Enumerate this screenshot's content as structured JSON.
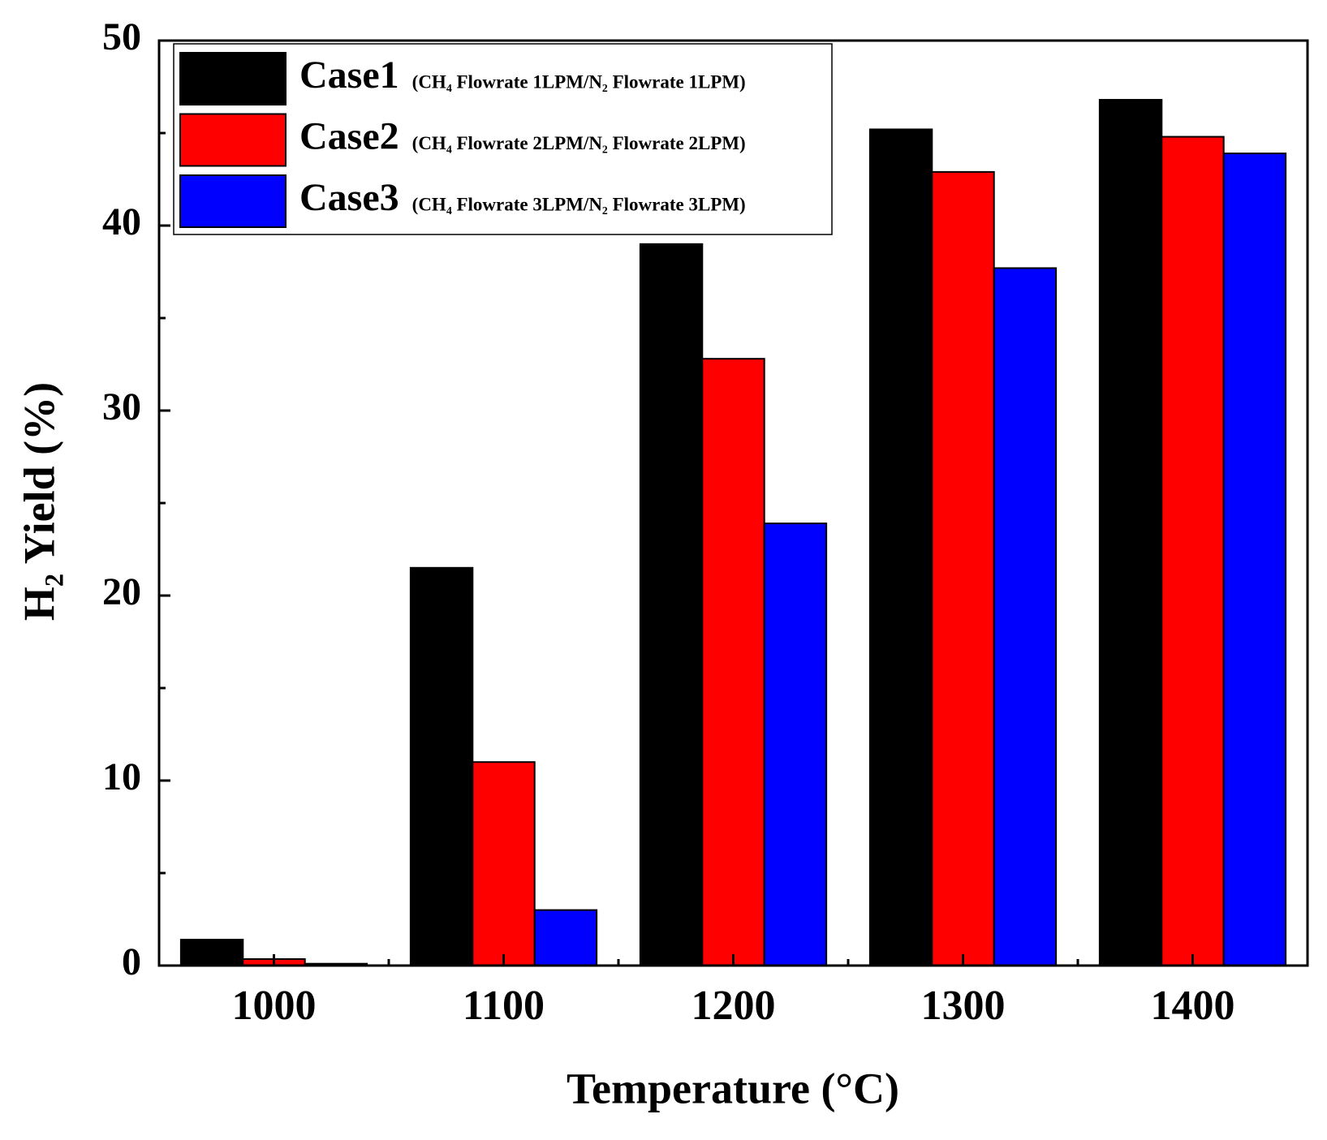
{
  "chart_data": {
    "type": "bar",
    "x_label": "Temperature (°C)",
    "y_label": "H₂ Yield (%)",
    "categories": [
      "1000",
      "1100",
      "1200",
      "1300",
      "1400"
    ],
    "series": [
      {
        "name": "Case1",
        "description": "(CH₄ Flowrate 1LPM/N₂ Flowrate 1LPM)",
        "color": "#000000",
        "values": [
          1.4,
          21.5,
          39.0,
          45.2,
          46.8
        ]
      },
      {
        "name": "Case2",
        "description": "(CH₄ Flowrate 2LPM/N₂ Flowrate 2LPM)",
        "color": "#ff0000",
        "values": [
          0.35,
          11.0,
          32.8,
          42.9,
          44.8
        ]
      },
      {
        "name": "Case3",
        "description": "(CH₄ Flowrate 3LPM/N₂ Flowrate 3LPM)",
        "color": "#0000ff",
        "values": [
          0.1,
          3.0,
          23.9,
          37.7,
          43.9
        ]
      }
    ],
    "ylim": [
      0,
      50
    ],
    "yticks": [
      0,
      10,
      20,
      30,
      40,
      50
    ],
    "legend": "upper left",
    "grid": false
  }
}
